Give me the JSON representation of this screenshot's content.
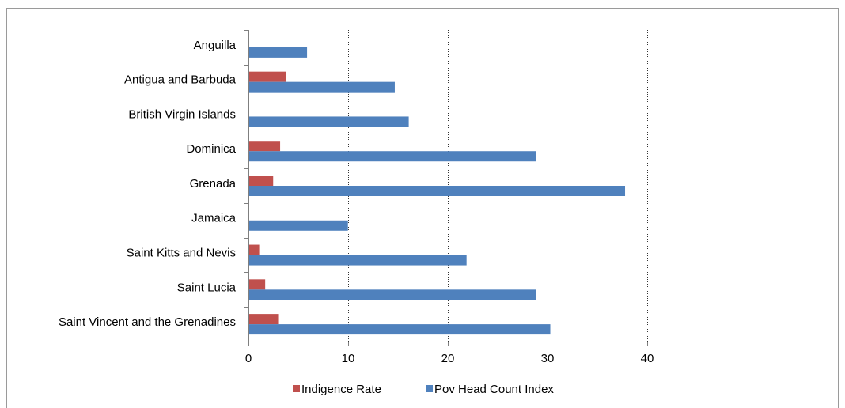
{
  "chart_data": {
    "type": "bar",
    "orientation": "horizontal",
    "categories": [
      "Anguilla",
      "Antigua and Barbuda",
      "British Virgin Islands",
      "Dominica",
      "Grenada",
      "Jamaica",
      "Saint Kitts and Nevis",
      "Saint Lucia",
      "Saint Vincent and the Grenadines"
    ],
    "series": [
      {
        "name": "Indigence Rate",
        "color": "#c0504d",
        "values": [
          0,
          3.7,
          0,
          3.1,
          2.4,
          0,
          1.0,
          1.6,
          2.9
        ]
      },
      {
        "name": "Pov Head Count Index",
        "color": "#4f81bd",
        "values": [
          5.8,
          14.6,
          16.0,
          28.8,
          37.7,
          9.9,
          21.8,
          28.8,
          30.2
        ]
      }
    ],
    "xlim": [
      0,
      40
    ],
    "xticks": [
      0,
      10,
      20,
      30,
      40
    ],
    "grid": "vertical-dotted",
    "legend": "bottom"
  }
}
